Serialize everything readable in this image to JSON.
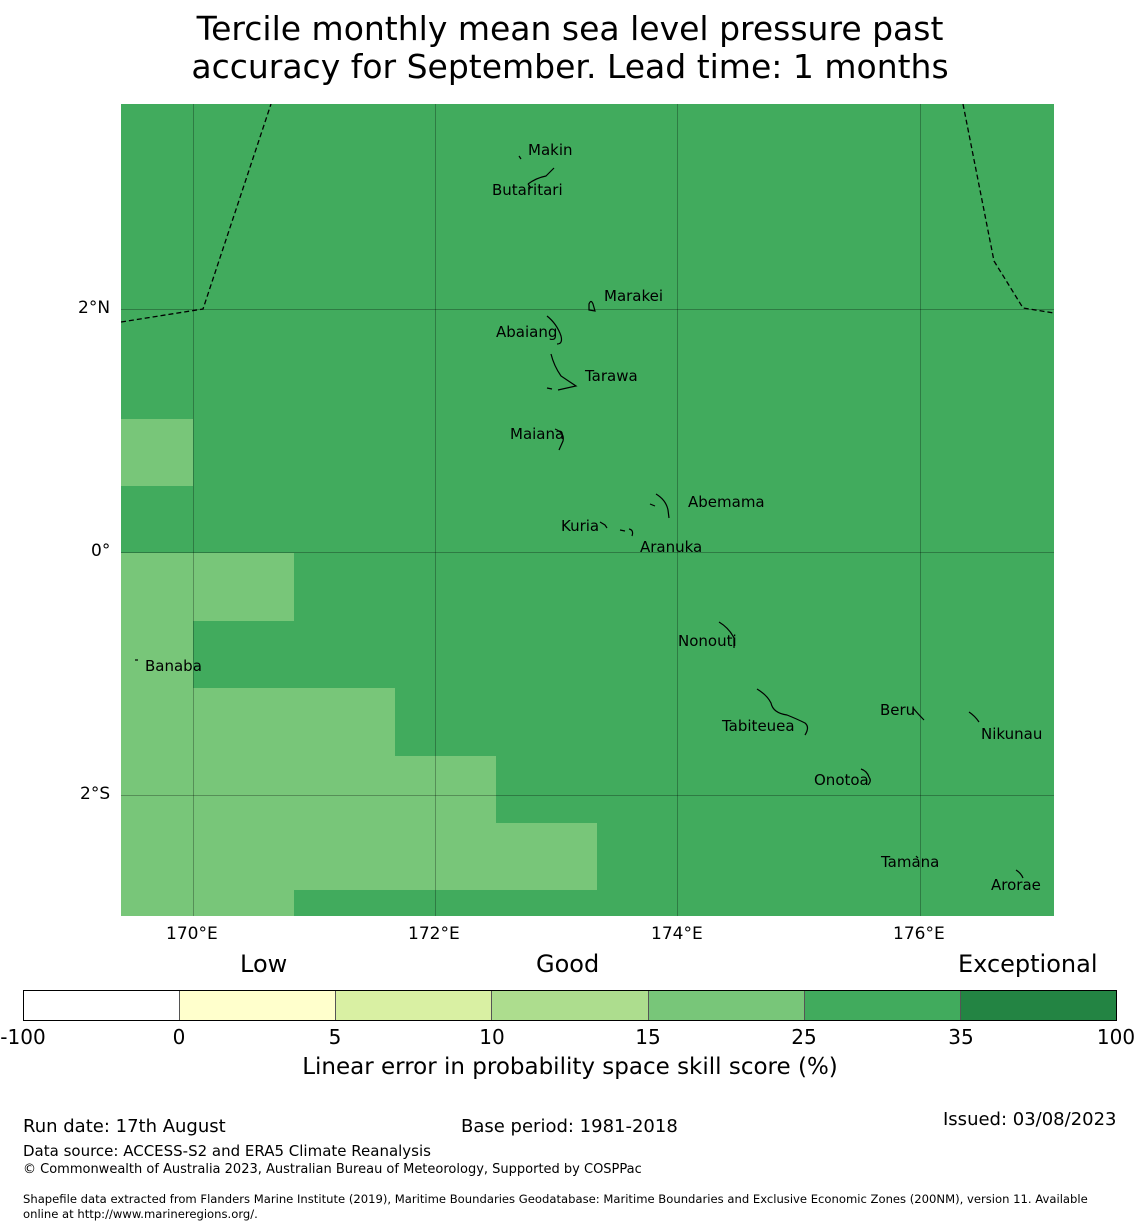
{
  "title_line1": "Tercile monthly mean sea level pressure past",
  "title_line2": "accuracy for September. Lead time: 1 months",
  "map": {
    "background_color": "#41ab5d",
    "light_cell_color": "#78c679",
    "x_ticks": [
      "170°E",
      "172°E",
      "174°E",
      "176°E"
    ],
    "y_ticks": [
      "2°N",
      "0°",
      "2°S"
    ],
    "islands": [
      "Makin",
      "Butaritari",
      "Marakei",
      "Abaiang",
      "Tarawa",
      "Maiana",
      "Abemama",
      "Kuria",
      "Aranuka",
      "Nonouti",
      "Banaba",
      "Beru",
      "Nikunau",
      "Tabiteuea",
      "Onotoa",
      "Tamana",
      "Arorae"
    ]
  },
  "colorbar": {
    "categories": [
      "Low",
      "Good",
      "Exceptional"
    ],
    "colors": [
      "#ffffff",
      "#ffffcc",
      "#d9f0a3",
      "#addd8e",
      "#78c679",
      "#41ab5d",
      "#238443"
    ],
    "ticks": [
      "-100",
      "0",
      "5",
      "10",
      "15",
      "25",
      "35",
      "100"
    ],
    "label": "Linear error in probability space skill score (%)"
  },
  "footer": {
    "run_date": "Run date: 17th August",
    "base_period": "Base period: 1981-2018",
    "issued": "Issued: 03/08/2023",
    "data_source": "Data source: ACCESS-S2 and ERA5 Climate Reanalysis",
    "copyright": "© Commonwealth of Australia 2023, Australian Bureau of Meteorology, Supported by COSPPac",
    "shapefile_line1": "Shapefile data extracted from Flanders Marine Institute (2019), Maritime Boundaries Geodatabase: Maritime Boundaries and Exclusive Economic Zones (200NM), version 11. Available",
    "shapefile_line2": "online at http://www.marineregions.org/."
  }
}
